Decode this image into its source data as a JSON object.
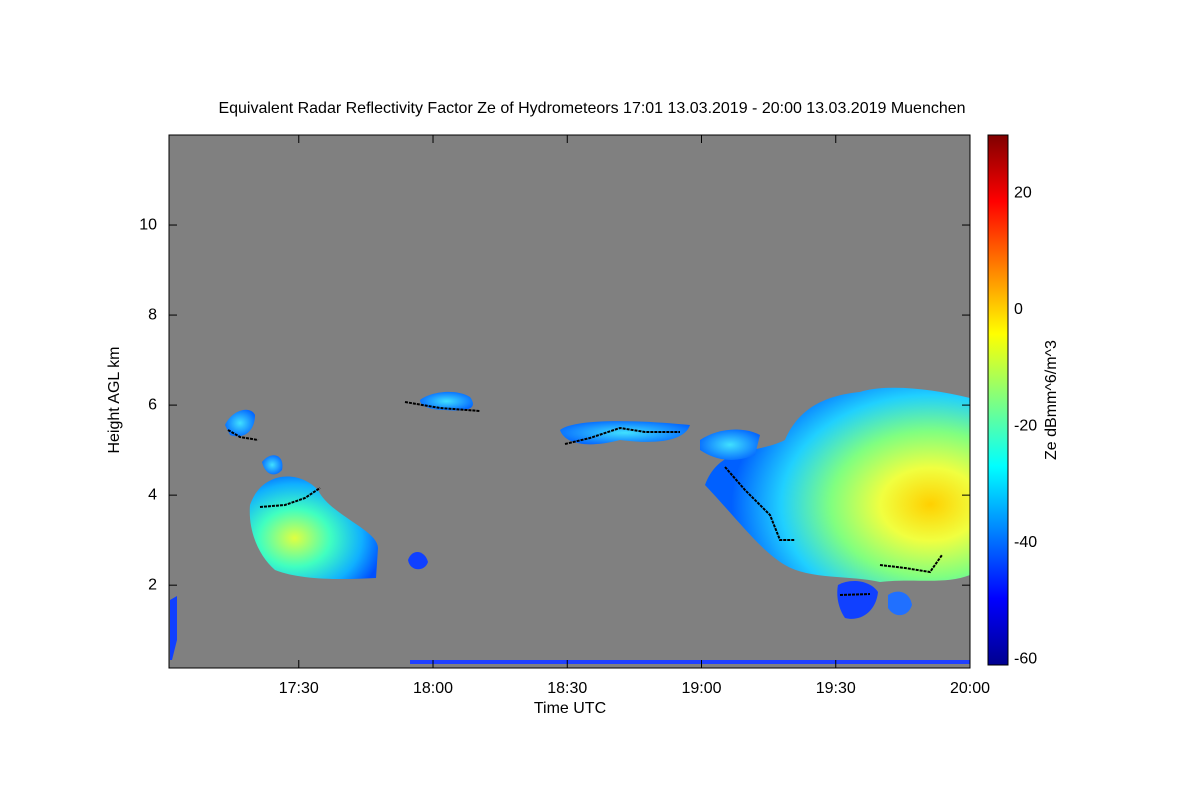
{
  "chart_data": {
    "type": "heatmap",
    "title": "Equivalent Radar Reflectivity Factor Ze of Hydrometeors   17:01 13.03.2019 - 20:00 13.03.2019 Muenchen",
    "xlabel": "Time UTC",
    "ylabel": "Height AGL km",
    "colorbar_label": "Ze dBmm^6/m^3",
    "xlim": [
      "17:01",
      "20:00"
    ],
    "xticks": [
      "17:30",
      "18:00",
      "18:30",
      "19:00",
      "19:30",
      "20:00"
    ],
    "ylim": [
      0.16,
      12
    ],
    "yticks": [
      2,
      4,
      6,
      8,
      10
    ],
    "clim": [
      -61,
      30
    ],
    "cticks": [
      -60,
      -40,
      -20,
      0,
      20
    ],
    "colormap": [
      "#00008f",
      "#0000ff",
      "#0080ff",
      "#00ffff",
      "#80ff80",
      "#ffff00",
      "#ff8000",
      "#ff0000",
      "#800000"
    ],
    "background": "#808080"
  }
}
